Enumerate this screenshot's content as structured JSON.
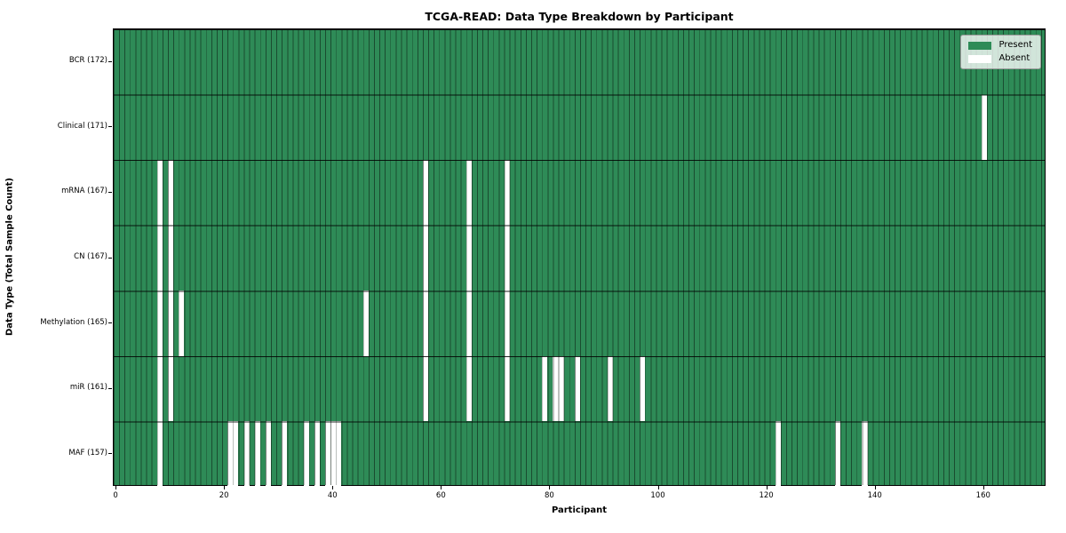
{
  "title": "TCGA-READ: Data Type Breakdown by Participant",
  "axes": {
    "x_label": "Participant",
    "y_label": "Data Type (Total Sample Count)",
    "x_ticks": [
      0,
      20,
      40,
      60,
      80,
      100,
      120,
      140,
      160
    ]
  },
  "legend": {
    "items": [
      {
        "label": "Present",
        "color": "#2e8b57"
      },
      {
        "label": "Absent",
        "color": "#ffffff"
      }
    ]
  },
  "colors": {
    "present": "#2e8b57",
    "absent": "#ffffff",
    "grid_line": "#0a190f",
    "row_line": "#000000",
    "legend_background": "#ffffff",
    "legend_border": "#9a9a9a"
  },
  "chart_data": {
    "type": "heatmap",
    "title": "TCGA-READ: Data Type Breakdown by Participant",
    "xlabel": "Participant",
    "ylabel": "Data Type (Total Sample Count)",
    "n_participants": 172,
    "x_range": [
      0,
      171
    ],
    "x_tick_values": [
      0,
      20,
      40,
      60,
      80,
      100,
      120,
      140,
      160
    ],
    "legend_entries": [
      "Present",
      "Absent"
    ],
    "value_encoding": {
      "present": 1,
      "absent": 0
    },
    "rows": [
      {
        "label": "BCR (172)",
        "data_type": "BCR",
        "total_sample_count": 172,
        "absent_participants": []
      },
      {
        "label": "Clinical (171)",
        "data_type": "Clinical",
        "total_sample_count": 171,
        "absent_participants": [
          160
        ]
      },
      {
        "label": "mRNA (167)",
        "data_type": "mRNA",
        "total_sample_count": 167,
        "absent_participants": [
          8,
          10,
          57,
          65,
          72
        ]
      },
      {
        "label": "CN (167)",
        "data_type": "CN",
        "total_sample_count": 167,
        "absent_participants": [
          8,
          10,
          57,
          65,
          72
        ]
      },
      {
        "label": "Methylation (165)",
        "data_type": "Methylation",
        "total_sample_count": 165,
        "absent_participants": [
          8,
          10,
          12,
          46,
          57,
          65,
          72
        ]
      },
      {
        "label": "miR (161)",
        "data_type": "miR",
        "total_sample_count": 161,
        "absent_participants": [
          8,
          10,
          57,
          65,
          72,
          79,
          81,
          82,
          85,
          91,
          97
        ]
      },
      {
        "label": "MAF (157)",
        "data_type": "MAF",
        "total_sample_count": 157,
        "absent_participants": [
          8,
          21,
          22,
          24,
          26,
          28,
          31,
          35,
          37,
          39,
          40,
          41,
          122,
          133,
          138
        ]
      }
    ]
  }
}
